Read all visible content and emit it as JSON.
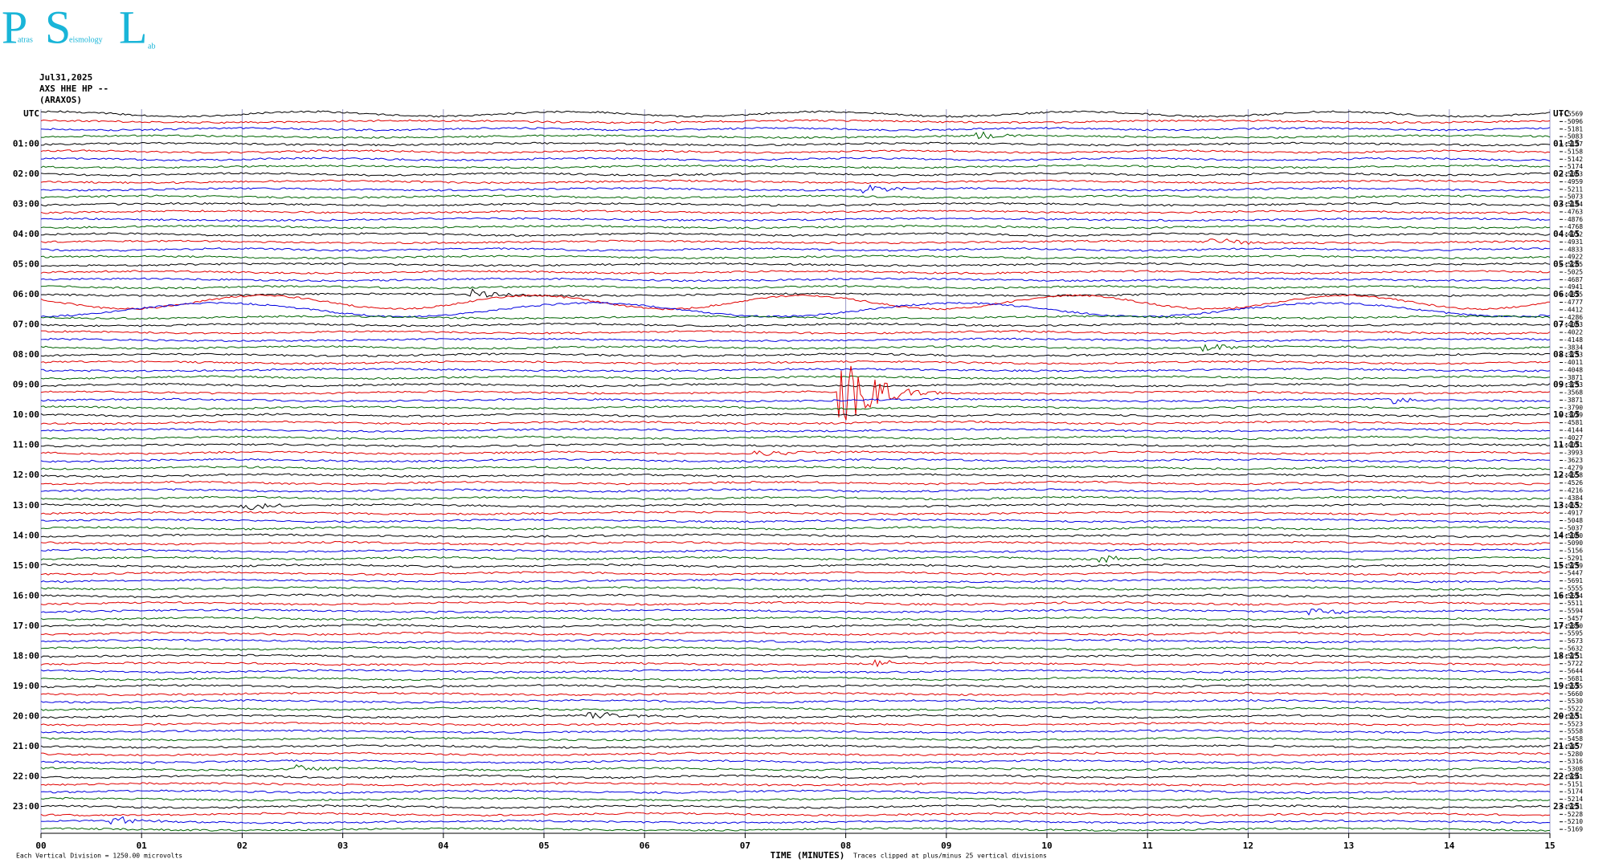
{
  "logo": {
    "parts": [
      "P",
      "atras",
      "S",
      "eismology",
      "L",
      "ab"
    ]
  },
  "header": {
    "date": "Jul31,2025",
    "station": "AXS HHE HP --",
    "site": "(ARAXOS)"
  },
  "left_labels": [
    "UTC",
    "01:00",
    "02:00",
    "03:00",
    "04:00",
    "05:00",
    "06:00",
    "07:00",
    "08:00",
    "09:00",
    "10:00",
    "11:00",
    "12:00",
    "13:00",
    "14:00",
    "15:00",
    "16:00",
    "17:00",
    "18:00",
    "19:00",
    "20:00",
    "21:00",
    "22:00",
    "23:00"
  ],
  "right_labels": [
    "UTC",
    "01:15",
    "02:15",
    "03:15",
    "04:15",
    "05:15",
    "06:15",
    "07:15",
    "08:15",
    "09:15",
    "10:15",
    "11:15",
    "12:15",
    "13:15",
    "14:15",
    "15:15",
    "16:15",
    "17:15",
    "18:15",
    "19:15",
    "20:15",
    "21:15",
    "22:15",
    "23:15"
  ],
  "offsets": [
    -5569,
    -5096,
    -5181,
    -5083,
    -5127,
    -5158,
    -5142,
    -5174,
    -5063,
    -4959,
    -5211,
    -5073,
    -5194,
    -4763,
    -4876,
    -4768,
    -4912,
    -4931,
    -4833,
    -4922,
    -5285,
    -5025,
    -4687,
    -4941,
    -4875,
    -4777,
    -4412,
    -4286,
    -4083,
    -4022,
    -4148,
    -3834,
    -3733,
    -4011,
    -4048,
    -3871,
    -3733,
    -3568,
    -3871,
    -3790,
    -3979,
    -4581,
    -4144,
    -4027,
    -4071,
    -3993,
    -3623,
    -4279,
    -4658,
    -4526,
    -4216,
    -4384,
    -4532,
    -4917,
    -5048,
    -5037,
    -5080,
    -5090,
    -5156,
    -5291,
    -5739,
    -5447,
    -5691,
    -5555,
    -5574,
    -5511,
    -5594,
    -5457,
    -5390,
    -5595,
    -5673,
    -5632,
    -5751,
    -5722,
    -5644,
    -5681,
    -5575,
    -5660,
    -5530,
    -5522,
    -5531,
    -5523,
    -5558,
    -5458,
    -5457,
    -5280,
    -5316,
    -5308,
    -5241,
    -5151,
    -5174,
    -5214,
    -5221,
    -5228,
    -5210,
    -5169
  ],
  "trace_colors": [
    "#000000",
    "#e00000",
    "#0000e0",
    "#006400"
  ],
  "x_axis": {
    "title": "TIME (MINUTES)",
    "ticks": [
      "00",
      "01",
      "02",
      "03",
      "04",
      "05",
      "06",
      "07",
      "08",
      "09",
      "10",
      "11",
      "12",
      "13",
      "14",
      "15"
    ]
  },
  "footer": {
    "scale": "Each Vertical Division = 1250.00 microvolts",
    "note": "Traces clipped at plus/minus 25 vertical divisions"
  }
}
